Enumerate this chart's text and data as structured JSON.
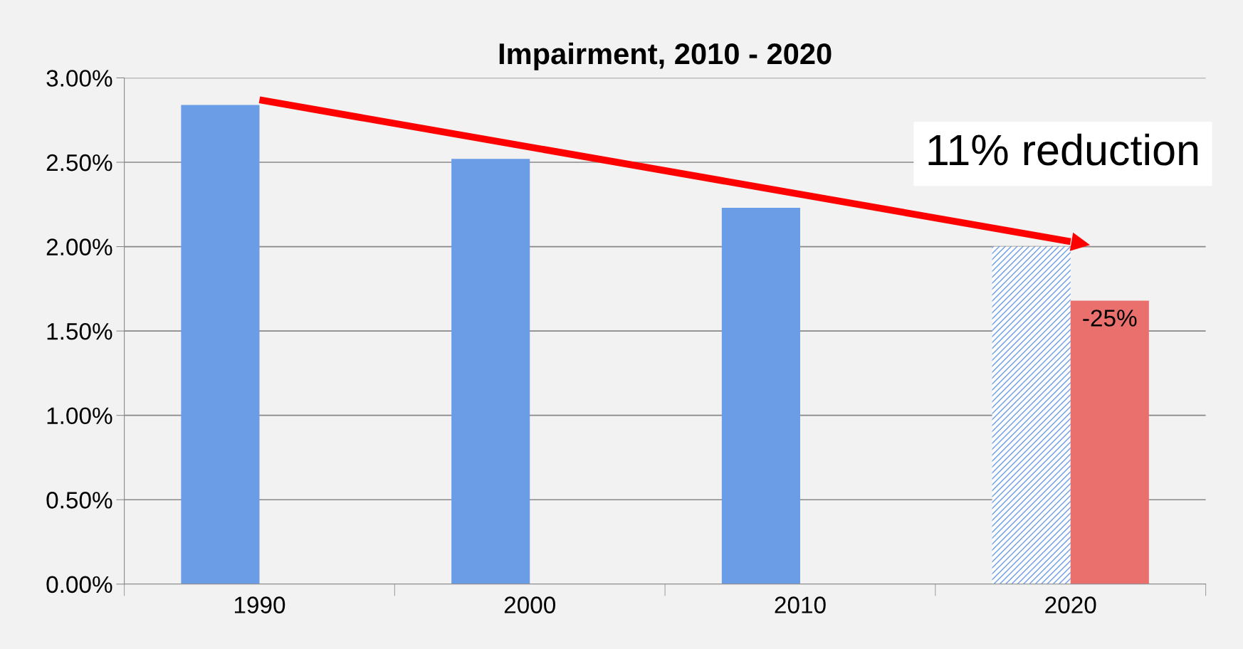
{
  "chart_data": {
    "type": "bar",
    "title": "Impairment, 2010 - 2020",
    "categories": [
      "1990",
      "2000",
      "2010",
      "2020"
    ],
    "series": [
      {
        "color": "#6a9de6",
        "colors": [
          "#6a9de6",
          "#6a9de6",
          "#6a9de6",
          "#ffffff"
        ],
        "values": [
          2.84,
          2.52,
          2.23,
          2.0
        ]
      },
      {
        "color": "#e9706c",
        "values": [
          null,
          null,
          null,
          1.68
        ]
      },
      {
        "type": "line",
        "color": "#ff0000",
        "values": [
          2.87,
          null,
          null,
          2.03
        ]
      }
    ],
    "ylim": [
      0,
      3
    ],
    "yticks": [
      {
        "value": 0,
        "label": "0.00%"
      },
      {
        "value": 0.5,
        "label": "0.50%"
      },
      {
        "value": 1,
        "label": "1.00%"
      },
      {
        "value": 1.5,
        "label": "1.50%"
      },
      {
        "value": 2,
        "label": "2.00%"
      },
      {
        "value": 2.5,
        "label": "2.50%"
      },
      {
        "value": 3,
        "label": "3.00%"
      }
    ],
    "grid": "y",
    "legend": false,
    "annotations": [
      "11% reduction",
      {
        "text": "-25%",
        "x": "2020",
        "y": 1.68
      }
    ]
  }
}
